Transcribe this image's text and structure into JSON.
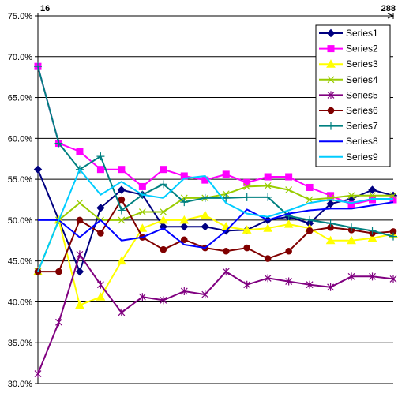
{
  "chart_data": {
    "type": "line",
    "top_axis_labels": {
      "left": "16",
      "right": "288"
    },
    "ylim": [
      0.3,
      0.75
    ],
    "yticks": [
      "30.0%",
      "35.0%",
      "40.0%",
      "45.0%",
      "50.0%",
      "55.0%",
      "60.0%",
      "65.0%",
      "70.0%",
      "75.0%"
    ],
    "ytick_values": [
      0.3,
      0.35,
      0.4,
      0.45,
      0.5,
      0.55,
      0.6,
      0.65,
      0.7,
      0.75
    ],
    "x_count": 18,
    "grid": "horizontal",
    "legend_position": "top-right",
    "series": [
      {
        "name": "Series1",
        "color": "#000080",
        "marker": "diamond",
        "values": [
          0.562,
          0.5,
          0.437,
          0.515,
          0.537,
          0.531,
          0.492,
          0.492,
          0.492,
          0.487,
          0.488,
          0.5,
          0.504,
          0.496,
          0.52,
          0.526,
          0.537,
          0.53
        ]
      },
      {
        "name": "Series2",
        "color": "#ff00ff",
        "marker": "square",
        "values": [
          0.688,
          0.594,
          0.584,
          0.562,
          0.562,
          0.541,
          0.562,
          0.554,
          0.549,
          0.556,
          0.546,
          0.553,
          0.553,
          0.54,
          0.53,
          0.519,
          0.525,
          0.525
        ]
      },
      {
        "name": "Series3",
        "color": "#ffff00",
        "marker": "triangle",
        "values": [
          0.437,
          0.5,
          0.396,
          0.406,
          0.45,
          0.49,
          0.5,
          0.5,
          0.506,
          0.492,
          0.488,
          0.49,
          0.495,
          0.49,
          0.475,
          0.475,
          0.478,
          0.483
        ]
      },
      {
        "name": "Series4",
        "color": "#99cc00",
        "marker": "x",
        "values": [
          0.437,
          0.5,
          0.521,
          0.5,
          0.5,
          0.51,
          0.51,
          0.527,
          0.527,
          0.532,
          0.541,
          0.542,
          0.537,
          0.525,
          0.527,
          0.53,
          0.53,
          0.53
        ]
      },
      {
        "name": "Series5",
        "color": "#800080",
        "marker": "star",
        "values": [
          0.312,
          0.375,
          0.458,
          0.421,
          0.387,
          0.406,
          0.402,
          0.413,
          0.409,
          0.437,
          0.421,
          0.429,
          0.425,
          0.421,
          0.418,
          0.431,
          0.431,
          0.428
        ]
      },
      {
        "name": "Series6",
        "color": "#800000",
        "marker": "circle",
        "values": [
          0.437,
          0.437,
          0.5,
          0.484,
          0.525,
          0.479,
          0.464,
          0.476,
          0.466,
          0.462,
          0.466,
          0.453,
          0.462,
          0.487,
          0.491,
          0.488,
          0.484,
          0.486
        ]
      },
      {
        "name": "Series7",
        "color": "#008080",
        "marker": "plus",
        "values": [
          0.688,
          0.594,
          0.562,
          0.578,
          0.512,
          0.531,
          0.544,
          0.522,
          0.527,
          0.527,
          0.528,
          0.528,
          0.505,
          0.5,
          0.496,
          0.491,
          0.487,
          0.48
        ]
      },
      {
        "name": "Series8",
        "color": "#0000ff",
        "marker": "none",
        "values": [
          0.5,
          0.5,
          0.479,
          0.5,
          0.475,
          0.479,
          0.49,
          0.47,
          0.466,
          0.487,
          0.513,
          0.5,
          0.508,
          0.512,
          0.514,
          0.514,
          0.518,
          0.522
        ]
      },
      {
        "name": "Series9",
        "color": "#00ccff",
        "marker": "none",
        "values": [
          0.437,
          0.5,
          0.562,
          0.531,
          0.547,
          0.531,
          0.527,
          0.551,
          0.554,
          0.521,
          0.508,
          0.504,
          0.512,
          0.521,
          0.525,
          0.521,
          0.526,
          0.526
        ]
      }
    ]
  }
}
